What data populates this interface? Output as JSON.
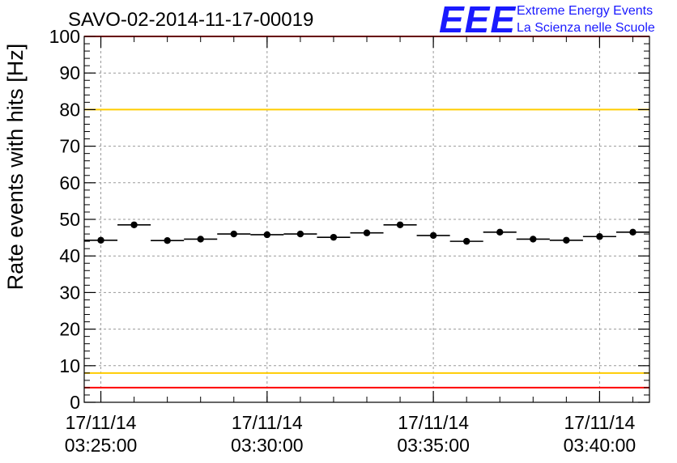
{
  "title": "SAVO-02-2014-11-17-00019",
  "logo": {
    "mark": "EEE",
    "line1": "Extreme Energy Events",
    "line2": "La Scienza nelle Scuole",
    "color": "#1a1aff"
  },
  "chart_data": {
    "type": "scatter",
    "title": "SAVO-02-2014-11-17-00019",
    "xlabel": "",
    "ylabel": "Rate events with hits [Hz]",
    "ylim": [
      0,
      100
    ],
    "y_ticks": [
      0,
      10,
      20,
      30,
      40,
      50,
      60,
      70,
      80,
      90,
      100
    ],
    "xlim": [
      "03:24:30",
      "03:41:30"
    ],
    "x_ticks": [
      {
        "date": "17/11/14",
        "time": "03:25:00"
      },
      {
        "date": "17/11/14",
        "time": "03:30:00"
      },
      {
        "date": "17/11/14",
        "time": "03:35:00"
      },
      {
        "date": "17/11/14",
        "time": "03:40:00"
      }
    ],
    "grid": true,
    "x_error_halfwidth_seconds": 30,
    "series": [
      {
        "x": [
          "03:25:00",
          "03:26:00",
          "03:27:00",
          "03:28:00",
          "03:29:00",
          "03:30:00",
          "03:31:00",
          "03:32:00",
          "03:33:00",
          "03:34:00",
          "03:35:00",
          "03:36:00",
          "03:37:00",
          "03:38:00",
          "03:39:00",
          "03:40:00",
          "03:41:00"
        ],
        "y": [
          44.3,
          48.5,
          44.2,
          44.6,
          46.0,
          45.8,
          46.0,
          45.1,
          46.3,
          48.5,
          45.6,
          44.0,
          46.5,
          44.6,
          44.3,
          45.3,
          46.5
        ],
        "color": "#000000"
      }
    ],
    "reference_lines": [
      {
        "y": 100,
        "color": "#ff0000"
      },
      {
        "y": 80,
        "color": "#ffcc00"
      },
      {
        "y": 8,
        "color": "#ffcc00"
      },
      {
        "y": 4,
        "color": "#ff0000"
      }
    ]
  }
}
